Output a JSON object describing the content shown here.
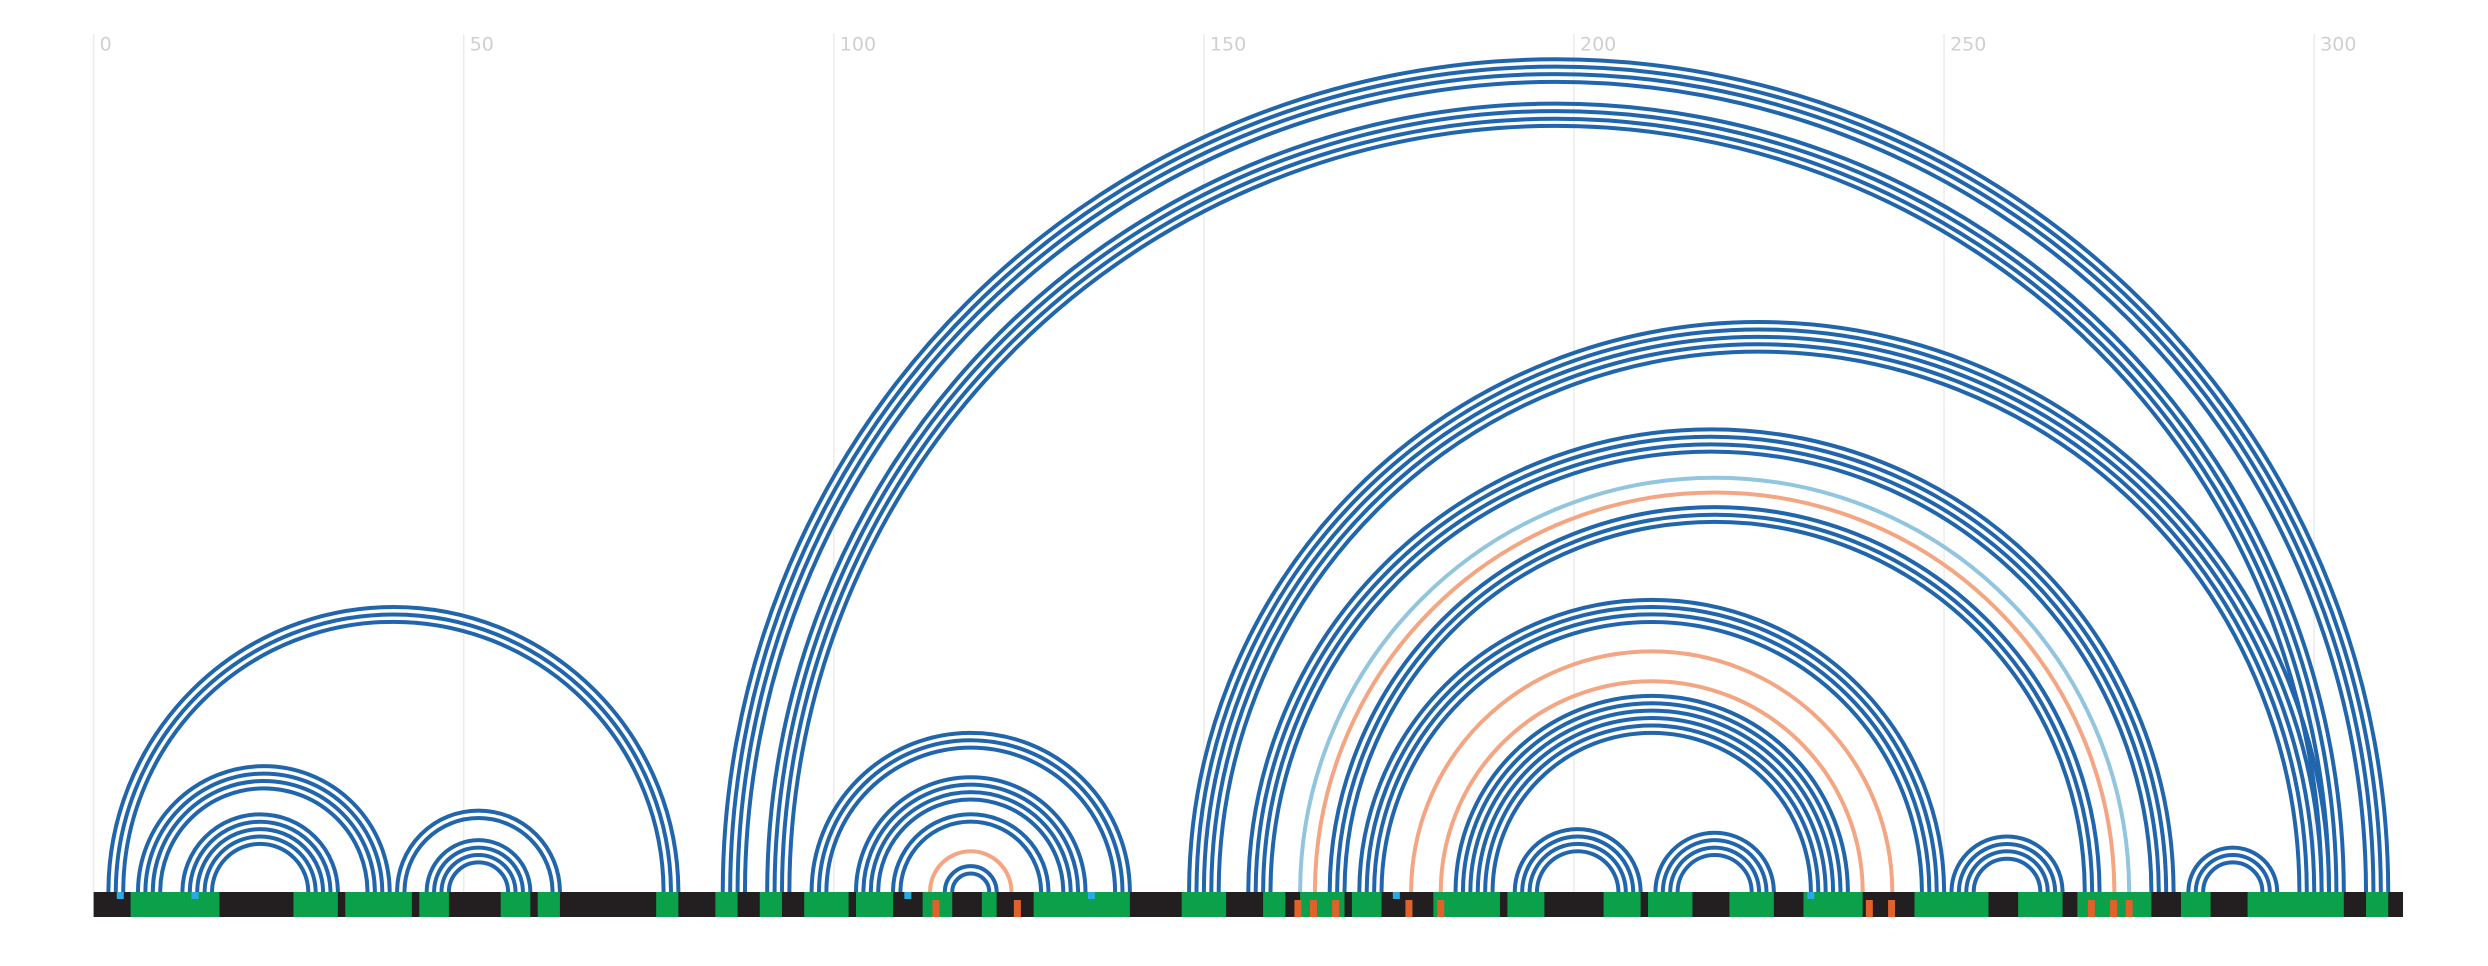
{
  "chart_data": {
    "type": "arc",
    "xlim": [
      0,
      312
    ],
    "xticks": [
      0,
      50,
      100,
      150,
      200,
      250,
      300
    ],
    "grid": true,
    "track_color": "#231f20",
    "helices": [
      {
        "start": 2,
        "end": 79,
        "length": 3,
        "color": "#2166ac"
      },
      {
        "start": 6,
        "end": 40,
        "length": 4,
        "color": "#2166ac"
      },
      {
        "start": 12,
        "end": 33,
        "length": 5,
        "color": "#2166ac"
      },
      {
        "start": 41,
        "end": 63,
        "length": 2,
        "color": "#2166ac"
      },
      {
        "start": 45,
        "end": 59,
        "length": 4,
        "color": "#2166ac"
      },
      {
        "start": 85,
        "end": 310,
        "length": 4,
        "color": "#2166ac"
      },
      {
        "start": 91,
        "end": 304,
        "length": 4,
        "color": "#2166ac"
      },
      {
        "start": 97,
        "end": 140,
        "length": 3,
        "color": "#2166ac"
      },
      {
        "start": 103,
        "end": 134,
        "length": 4,
        "color": "#2166ac"
      },
      {
        "start": 108,
        "end": 129,
        "length": 2,
        "color": "#2166ac"
      },
      {
        "start": 113,
        "end": 124,
        "length": 1,
        "color": "#f4a582"
      },
      {
        "start": 115,
        "end": 122,
        "length": 2,
        "color": "#2166ac"
      },
      {
        "start": 148,
        "end": 302,
        "length": 5,
        "color": "#2166ac"
      },
      {
        "start": 156,
        "end": 281,
        "length": 4,
        "color": "#2166ac"
      },
      {
        "start": 163,
        "end": 275,
        "length": 1,
        "color": "#92c5de"
      },
      {
        "start": 165,
        "end": 273,
        "length": 1,
        "color": "#f4a582"
      },
      {
        "start": 167,
        "end": 271,
        "length": 3,
        "color": "#2166ac"
      },
      {
        "start": 171,
        "end": 250,
        "length": 4,
        "color": "#2166ac"
      },
      {
        "start": 178,
        "end": 243,
        "length": 1,
        "color": "#f4a582"
      },
      {
        "start": 182,
        "end": 239,
        "length": 1,
        "color": "#f4a582"
      },
      {
        "start": 184,
        "end": 237,
        "length": 6,
        "color": "#2166ac"
      },
      {
        "start": 192,
        "end": 209,
        "length": 4,
        "color": "#2166ac"
      },
      {
        "start": 211,
        "end": 227,
        "length": 4,
        "color": "#2166ac"
      },
      {
        "start": 251,
        "end": 266,
        "length": 4,
        "color": "#2166ac"
      },
      {
        "start": 283,
        "end": 295,
        "length": 3,
        "color": "#2166ac"
      }
    ],
    "segments": {
      "color": "#0aa14a",
      "ranges": [
        [
          5,
          17
        ],
        [
          27,
          33
        ],
        [
          34,
          43
        ],
        [
          44,
          48
        ],
        [
          55,
          59
        ],
        [
          60,
          63
        ],
        [
          76,
          79
        ],
        [
          84,
          87
        ],
        [
          90,
          93
        ],
        [
          96,
          102
        ],
        [
          103,
          108
        ],
        [
          112,
          116
        ],
        [
          120,
          122
        ],
        [
          127,
          140
        ],
        [
          147,
          153
        ],
        [
          158,
          161
        ],
        [
          163,
          169
        ],
        [
          170,
          174
        ],
        [
          181,
          190
        ],
        [
          191,
          196
        ],
        [
          204,
          209
        ],
        [
          210,
          216
        ],
        [
          221,
          227
        ],
        [
          231,
          239
        ],
        [
          246,
          256
        ],
        [
          260,
          266
        ],
        [
          268,
          278
        ],
        [
          282,
          286
        ],
        [
          291,
          304
        ],
        [
          307,
          310
        ]
      ]
    },
    "markers": [
      {
        "color": "#29abe2",
        "positions": [
          3.6,
          13.7,
          110,
          134.8,
          176,
          232
        ]
      },
      {
        "color": "#e0622a",
        "positions": [
          113.8,
          124.8,
          162.7,
          164.8,
          167.8,
          177.7,
          182,
          239.9,
          242.9,
          269.9,
          272.9,
          275
        ]
      }
    ]
  }
}
